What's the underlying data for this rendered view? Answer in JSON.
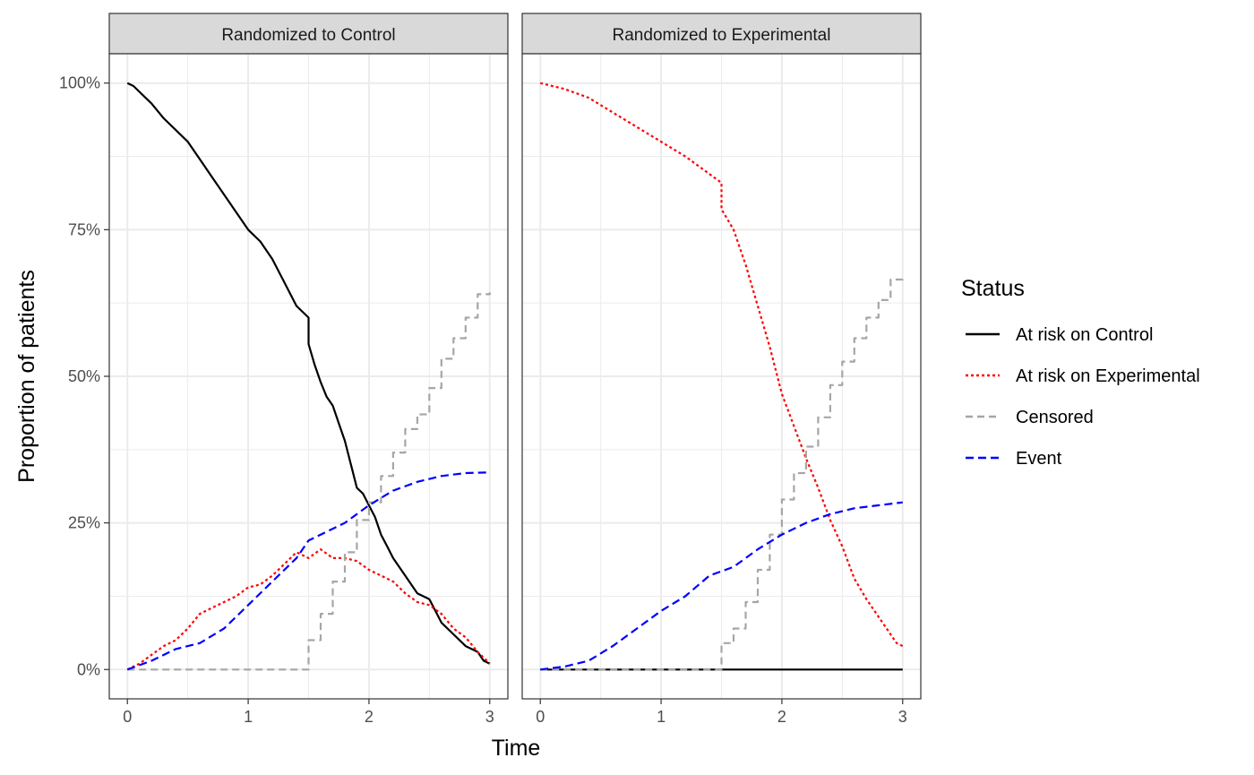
{
  "chart_data": {
    "type": "line",
    "xlabel": "Time",
    "ylabel": "Proportion of patients",
    "xlim": [
      -0.15,
      3.15
    ],
    "ylim": [
      -0.05,
      1.05
    ],
    "x_ticks": [
      0,
      1,
      2,
      3
    ],
    "x_tick_labels": [
      "0",
      "1",
      "2",
      "3"
    ],
    "y_ticks": [
      0,
      0.25,
      0.5,
      0.75,
      1
    ],
    "y_tick_labels": [
      "0%",
      "25%",
      "50%",
      "75%",
      "100%"
    ],
    "grid": true,
    "legend": {
      "title": "Status",
      "placement": "right",
      "entries": [
        {
          "label": "At risk on Control",
          "color": "#000000",
          "dash": "solid"
        },
        {
          "label": "At risk on Experimental",
          "color": "#ff0000",
          "dash": "dotted"
        },
        {
          "label": "Censored",
          "color": "#a6a6a6",
          "dash": "dashed"
        },
        {
          "label": "Event",
          "color": "#0000ff",
          "dash": "longdash"
        }
      ]
    },
    "panels": [
      {
        "title": "Randomized to Control",
        "series": [
          {
            "name": "At risk on Control",
            "color": "#000000",
            "dash": "solid",
            "step": false,
            "x": [
              0,
              0.05,
              0.1,
              0.2,
              0.3,
              0.4,
              0.5,
              0.6,
              0.7,
              0.8,
              0.9,
              1.0,
              1.1,
              1.2,
              1.3,
              1.4,
              1.5,
              1.5,
              1.55,
              1.6,
              1.65,
              1.7,
              1.75,
              1.8,
              1.85,
              1.9,
              1.95,
              2.0,
              2.05,
              2.1,
              2.15,
              2.2,
              2.3,
              2.4,
              2.5,
              2.55,
              2.6,
              2.7,
              2.8,
              2.9,
              2.95,
              3.0
            ],
            "y": [
              1.0,
              0.995,
              0.985,
              0.965,
              0.94,
              0.92,
              0.9,
              0.87,
              0.84,
              0.81,
              0.78,
              0.75,
              0.73,
              0.7,
              0.66,
              0.62,
              0.6,
              0.555,
              0.52,
              0.49,
              0.465,
              0.45,
              0.42,
              0.39,
              0.35,
              0.31,
              0.3,
              0.28,
              0.26,
              0.23,
              0.21,
              0.19,
              0.16,
              0.13,
              0.12,
              0.1,
              0.08,
              0.06,
              0.04,
              0.03,
              0.015,
              0.01
            ]
          },
          {
            "name": "At risk on Experimental",
            "color": "#ff0000",
            "dash": "dotted",
            "step": false,
            "x": [
              0,
              0.1,
              0.2,
              0.3,
              0.4,
              0.5,
              0.6,
              0.7,
              0.8,
              0.9,
              1.0,
              1.1,
              1.2,
              1.3,
              1.4,
              1.5,
              1.6,
              1.7,
              1.8,
              1.9,
              2.0,
              2.1,
              2.2,
              2.3,
              2.4,
              2.5,
              2.6,
              2.7,
              2.8,
              2.9,
              3.0
            ],
            "y": [
              0,
              0.01,
              0.025,
              0.04,
              0.05,
              0.07,
              0.095,
              0.105,
              0.115,
              0.125,
              0.14,
              0.145,
              0.16,
              0.18,
              0.2,
              0.19,
              0.205,
              0.19,
              0.19,
              0.185,
              0.17,
              0.16,
              0.15,
              0.13,
              0.115,
              0.11,
              0.095,
              0.07,
              0.055,
              0.03,
              0.01
            ]
          },
          {
            "name": "Censored",
            "color": "#a6a6a6",
            "dash": "dashed",
            "step": true,
            "x": [
              0,
              1.5,
              1.6,
              1.7,
              1.8,
              1.9,
              2.0,
              2.1,
              2.2,
              2.3,
              2.4,
              2.5,
              2.6,
              2.7,
              2.8,
              2.9,
              3.0
            ],
            "y": [
              0,
              0.05,
              0.095,
              0.15,
              0.2,
              0.255,
              0.285,
              0.33,
              0.37,
              0.41,
              0.435,
              0.48,
              0.53,
              0.565,
              0.6,
              0.64,
              0.643
            ]
          },
          {
            "name": "Event",
            "color": "#0000ff",
            "dash": "longdash",
            "step": false,
            "x": [
              0,
              0.2,
              0.4,
              0.6,
              0.8,
              1.0,
              1.2,
              1.4,
              1.5,
              1.6,
              1.8,
              2.0,
              2.2,
              2.4,
              2.6,
              2.8,
              3.0
            ],
            "y": [
              0,
              0.015,
              0.035,
              0.045,
              0.07,
              0.11,
              0.15,
              0.19,
              0.22,
              0.23,
              0.25,
              0.28,
              0.305,
              0.32,
              0.33,
              0.335,
              0.336
            ]
          }
        ]
      },
      {
        "title": "Randomized to Experimental",
        "series": [
          {
            "name": "At risk on Control",
            "color": "#000000",
            "dash": "solid",
            "step": false,
            "x": [
              0,
              3.0
            ],
            "y": [
              0,
              0
            ]
          },
          {
            "name": "At risk on Experimental",
            "color": "#ff0000",
            "dash": "dotted",
            "step": false,
            "x": [
              0,
              0.2,
              0.4,
              0.6,
              0.8,
              1.0,
              1.2,
              1.4,
              1.5,
              1.5,
              1.6,
              1.7,
              1.8,
              1.9,
              2.0,
              2.1,
              2.2,
              2.3,
              2.4,
              2.5,
              2.6,
              2.7,
              2.8,
              2.9,
              2.95,
              3.0
            ],
            "y": [
              1.0,
              0.99,
              0.975,
              0.95,
              0.925,
              0.9,
              0.875,
              0.845,
              0.83,
              0.785,
              0.75,
              0.69,
              0.62,
              0.55,
              0.47,
              0.415,
              0.36,
              0.31,
              0.255,
              0.21,
              0.155,
              0.12,
              0.09,
              0.06,
              0.045,
              0.04
            ]
          },
          {
            "name": "Censored",
            "color": "#a6a6a6",
            "dash": "dashed",
            "step": true,
            "x": [
              0,
              1.5,
              1.6,
              1.7,
              1.8,
              1.9,
              2.0,
              2.1,
              2.2,
              2.3,
              2.4,
              2.5,
              2.6,
              2.7,
              2.8,
              2.9,
              3.0
            ],
            "y": [
              0,
              0.045,
              0.07,
              0.115,
              0.17,
              0.23,
              0.29,
              0.335,
              0.38,
              0.43,
              0.485,
              0.525,
              0.565,
              0.6,
              0.63,
              0.665,
              0.67
            ]
          },
          {
            "name": "Event",
            "color": "#0000ff",
            "dash": "longdash",
            "step": false,
            "x": [
              0,
              0.2,
              0.4,
              0.6,
              0.8,
              1.0,
              1.2,
              1.4,
              1.6,
              1.8,
              2.0,
              2.2,
              2.4,
              2.6,
              2.8,
              3.0
            ],
            "y": [
              0,
              0.005,
              0.015,
              0.04,
              0.07,
              0.1,
              0.125,
              0.16,
              0.175,
              0.205,
              0.23,
              0.25,
              0.265,
              0.275,
              0.28,
              0.285
            ]
          }
        ]
      }
    ]
  }
}
